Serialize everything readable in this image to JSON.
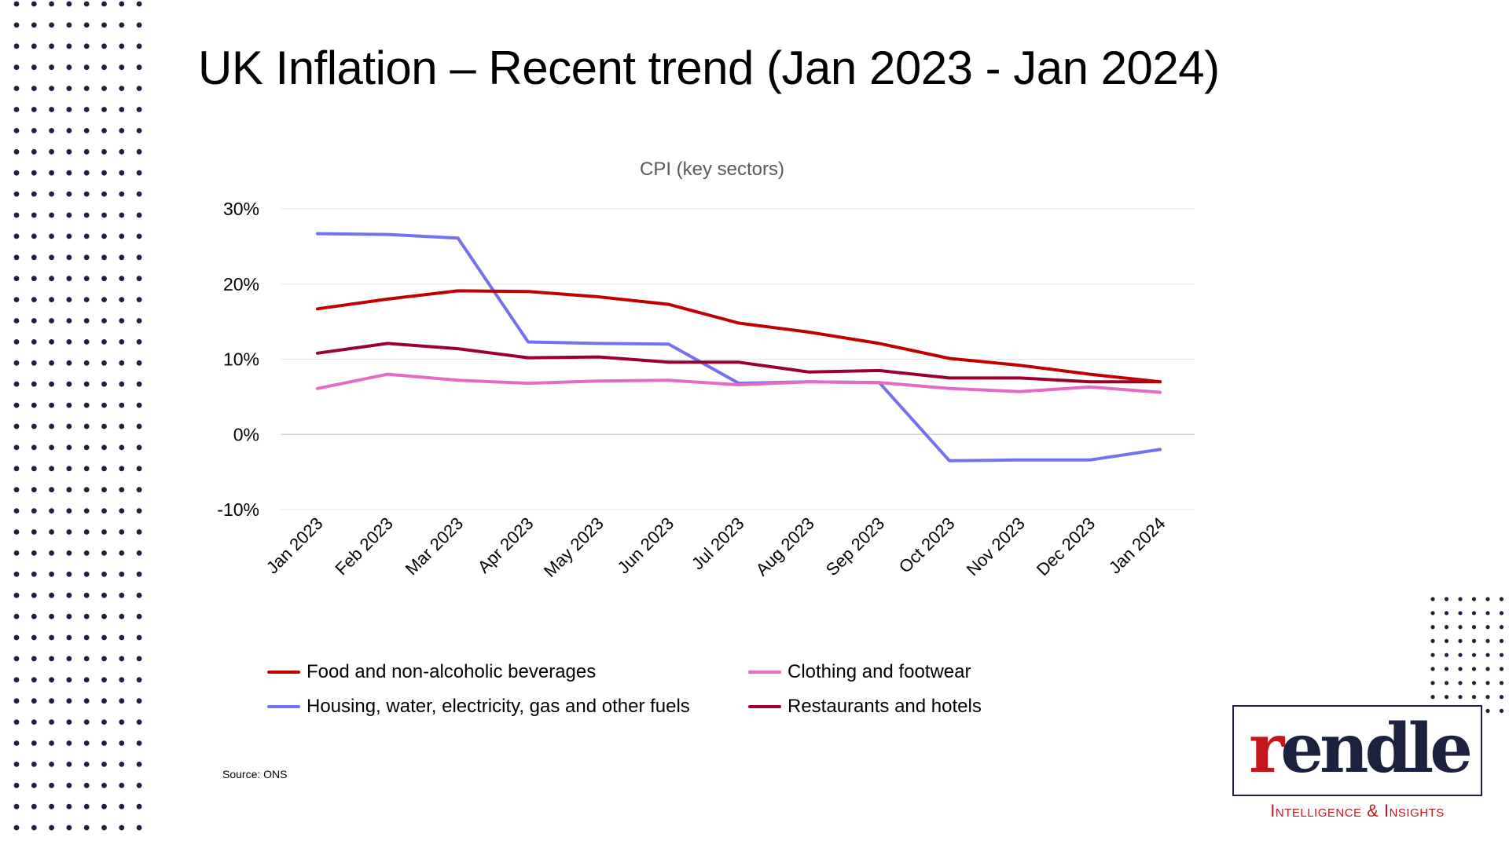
{
  "slide": {
    "title": "UK Inflation – Recent trend (Jan 2023 - Jan 2024)",
    "source": "Source: ONS"
  },
  "brand": {
    "logo_prefix": "r",
    "logo_rest": "endle",
    "tagline": "Intelligence & Insights",
    "navy": "#1c2140",
    "red": "#c4161c"
  },
  "chart_data": {
    "type": "line",
    "title": "CPI (key sectors)",
    "xlabel": "",
    "ylabel": "",
    "ylim": [
      -10,
      30
    ],
    "yticks": [
      "30%",
      "20%",
      "10%",
      "0%",
      "-10%"
    ],
    "ytick_values": [
      30,
      20,
      10,
      0,
      -10
    ],
    "grid": true,
    "legend_position": "bottom",
    "categories": [
      "Jan 2023",
      "Feb 2023",
      "Mar 2023",
      "Apr 2023",
      "May 2023",
      "Jun 2023",
      "Jul 2023",
      "Aug 2023",
      "Sep 2023",
      "Oct 2023",
      "Nov 2023",
      "Dec 2023",
      "Jan 2024"
    ],
    "series": [
      {
        "name": "Food and non-alcoholic beverages",
        "color": "#c00000",
        "values": [
          16.7,
          18.0,
          19.1,
          19.0,
          18.3,
          17.3,
          14.8,
          13.6,
          12.1,
          10.1,
          9.2,
          8.0,
          7.0
        ]
      },
      {
        "name": "Clothing and footwear",
        "color": "#e26bc6",
        "values": [
          6.1,
          8.0,
          7.2,
          6.8,
          7.1,
          7.2,
          6.6,
          7.0,
          6.9,
          6.1,
          5.7,
          6.3,
          5.6
        ]
      },
      {
        "name": "Housing, water, electricity, gas and other fuels",
        "color": "#7272f0",
        "values": [
          26.7,
          26.6,
          26.1,
          12.3,
          12.1,
          12.0,
          6.8,
          7.0,
          6.9,
          -3.5,
          -3.4,
          -3.4,
          -2.0
        ]
      },
      {
        "name": "Restaurants and hotels",
        "color": "#99002c",
        "values": [
          10.8,
          12.1,
          11.4,
          10.2,
          10.3,
          9.6,
          9.6,
          8.3,
          8.5,
          7.5,
          7.5,
          7.0,
          7.0
        ]
      }
    ]
  }
}
